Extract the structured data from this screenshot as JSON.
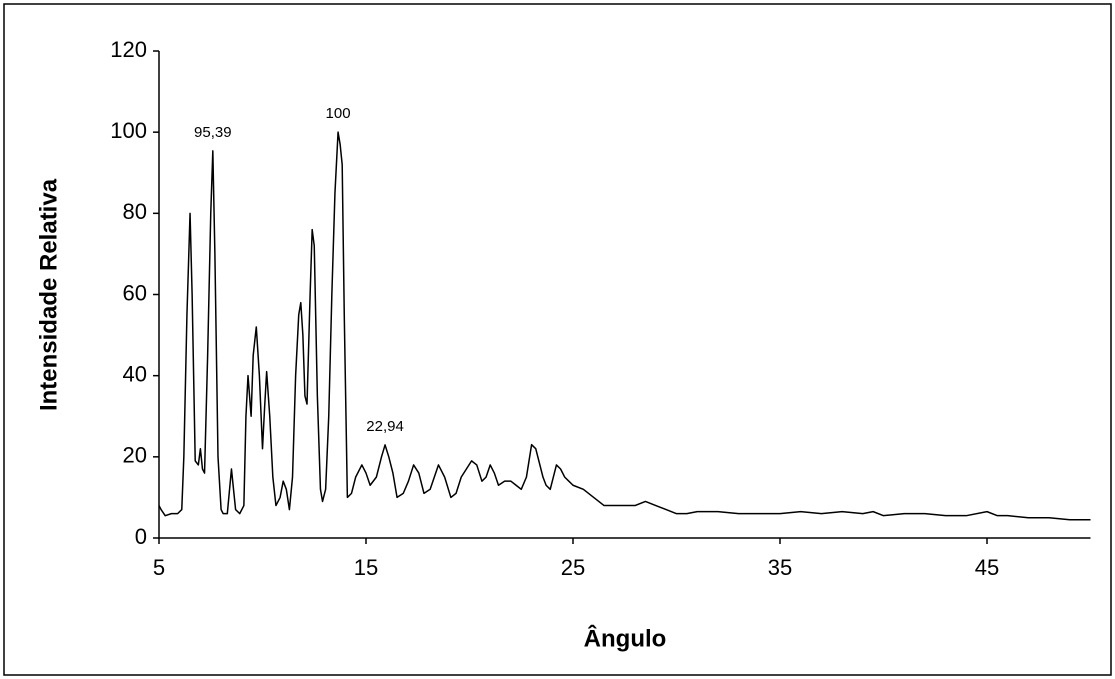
{
  "chart_data": {
    "type": "line",
    "x_label": "Ângulo",
    "y_label": "Intensidade Relativa",
    "color": "#000000",
    "xlim": [
      5,
      50
    ],
    "xticks": [
      5,
      15,
      25,
      35,
      45
    ],
    "ylim": [
      0,
      120
    ],
    "yticks": [
      0,
      20,
      40,
      60,
      80,
      100,
      120
    ],
    "x": [
      5,
      5.1,
      5.3,
      5.6,
      5.9,
      6.1,
      6.2,
      6.35,
      6.5,
      6.6,
      6.75,
      6.9,
      7.0,
      7.1,
      7.2,
      7.35,
      7.5,
      7.6,
      7.7,
      7.85,
      8.0,
      8.1,
      8.3,
      8.5,
      8.7,
      8.9,
      9.1,
      9.2,
      9.3,
      9.45,
      9.55,
      9.7,
      9.85,
      10.0,
      10.1,
      10.2,
      10.35,
      10.5,
      10.65,
      10.85,
      11.0,
      11.15,
      11.3,
      11.45,
      11.6,
      11.75,
      11.85,
      11.95,
      12.05,
      12.15,
      12.3,
      12.4,
      12.5,
      12.65,
      12.8,
      12.9,
      13.05,
      13.2,
      13.35,
      13.5,
      13.65,
      13.75,
      13.85,
      13.95,
      14.1,
      14.3,
      14.5,
      14.8,
      15.0,
      15.2,
      15.5,
      15.75,
      15.92,
      16.1,
      16.3,
      16.5,
      16.8,
      17.05,
      17.3,
      17.55,
      17.8,
      18.1,
      18.5,
      18.8,
      19.1,
      19.35,
      19.6,
      19.85,
      20.1,
      20.35,
      20.6,
      20.8,
      21.0,
      21.2,
      21.4,
      21.7,
      22.0,
      22.25,
      22.5,
      22.75,
      23.0,
      23.2,
      23.4,
      23.55,
      23.7,
      23.9,
      24.2,
      24.4,
      24.6,
      24.8,
      25.0,
      25.5,
      26.0,
      26.5,
      27.0,
      27.5,
      28.0,
      28.5,
      29.0,
      29.5,
      30.0,
      30.5,
      31.0,
      32.0,
      33.0,
      34.0,
      35.0,
      36.0,
      37.0,
      38.0,
      39.0,
      39.5,
      40.0,
      41.0,
      42.0,
      43.0,
      44.0,
      45.0,
      45.5,
      46.0,
      47.0,
      48.0,
      49.0,
      50.0
    ],
    "values": [
      8,
      7,
      5.5,
      6,
      6,
      7,
      20,
      55,
      80,
      60,
      19,
      18,
      22,
      17,
      16,
      45,
      80,
      95.39,
      70,
      20,
      7,
      6,
      6,
      17,
      7,
      6,
      8,
      30,
      40,
      30,
      45,
      52,
      40,
      22,
      32,
      41,
      30,
      15,
      8,
      10,
      14,
      12,
      7,
      15,
      40,
      55,
      58,
      50,
      35,
      33,
      60,
      76,
      72,
      35,
      12,
      9,
      12,
      30,
      60,
      85,
      100,
      97,
      92,
      55,
      10,
      11,
      15,
      18,
      16,
      13,
      15,
      20,
      22.94,
      20,
      16,
      10,
      11,
      14,
      18,
      16,
      11,
      12,
      18,
      15,
      10,
      11,
      15,
      17,
      19,
      18,
      14,
      15,
      18,
      16,
      13,
      14,
      14,
      13,
      12,
      15,
      23,
      22,
      18,
      15,
      13,
      12,
      18,
      17,
      15,
      14,
      13,
      12,
      10,
      8,
      8,
      8,
      8,
      9,
      8,
      7,
      6,
      6,
      6.5,
      6.5,
      6,
      6,
      6,
      6.5,
      6,
      6.5,
      6,
      6.5,
      5.5,
      6,
      6,
      5.5,
      5.5,
      6.5,
      5.5,
      5.5,
      5,
      5,
      4.5,
      4.5
    ],
    "annotations": [
      {
        "text": "95,39",
        "x": 7.6,
        "y": 95.39
      },
      {
        "text": "100",
        "x": 13.65,
        "y": 100
      },
      {
        "text": "22,94",
        "x": 15.92,
        "y": 22.94
      }
    ]
  }
}
